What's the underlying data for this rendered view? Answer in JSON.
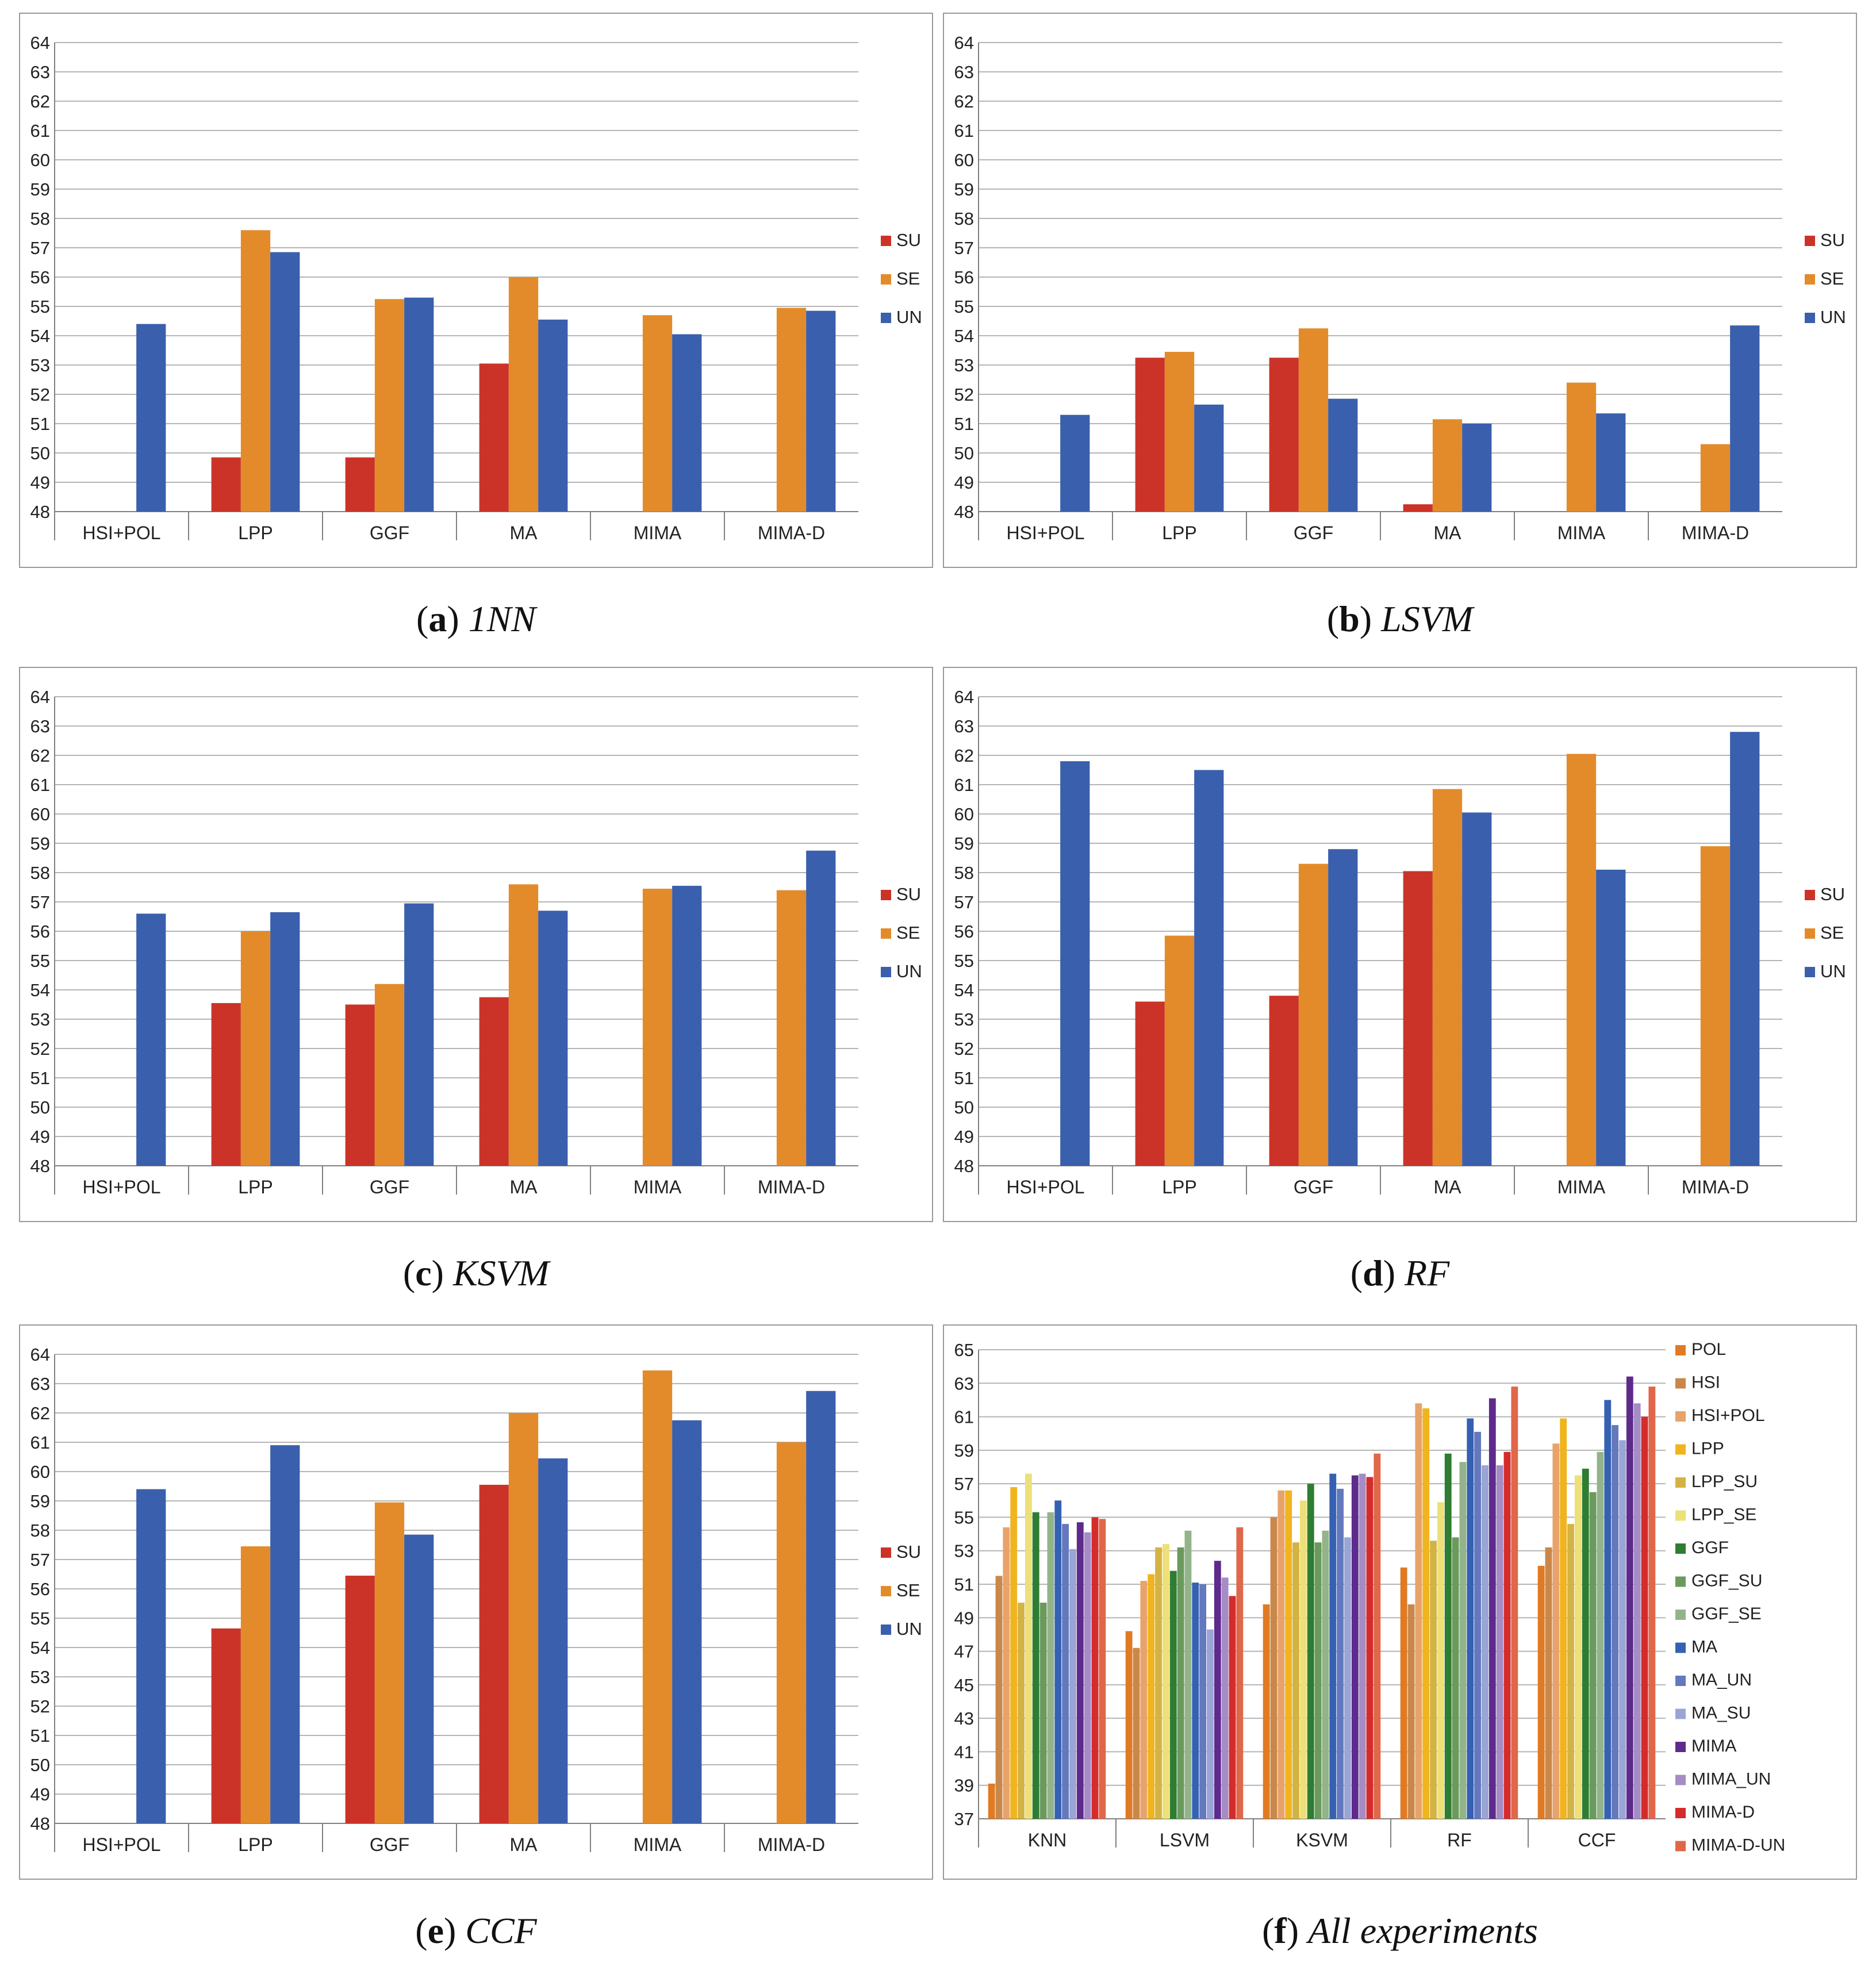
{
  "colors": {
    "SU": "#cc3328",
    "SE": "#e38b2a",
    "UN": "#3a5fad",
    "grid": "#b5b5b5",
    "axis": "#808080"
  },
  "chart_data": [
    {
      "type": "bar",
      "panel_label": "a",
      "caption": "1NN",
      "categories": [
        "HSI+POL",
        "LPP",
        "GGF",
        "MA",
        "MIMA",
        "MIMA-D"
      ],
      "ylim": [
        48,
        64
      ],
      "yticks": [
        48,
        49,
        50,
        51,
        52,
        53,
        54,
        55,
        56,
        57,
        58,
        59,
        60,
        61,
        62,
        63,
        64
      ],
      "series": [
        {
          "name": "SU",
          "values": [
            null,
            49.85,
            49.85,
            53.05,
            null,
            null
          ]
        },
        {
          "name": "SE",
          "values": [
            null,
            57.6,
            55.25,
            56.0,
            54.7,
            54.95
          ]
        },
        {
          "name": "UN",
          "values": [
            54.4,
            56.85,
            55.3,
            54.55,
            54.05,
            54.85
          ]
        }
      ]
    },
    {
      "type": "bar",
      "panel_label": "b",
      "caption": "LSVM",
      "categories": [
        "HSI+POL",
        "LPP",
        "GGF",
        "MA",
        "MIMA",
        "MIMA-D"
      ],
      "ylim": [
        48,
        64
      ],
      "yticks": [
        48,
        49,
        50,
        51,
        52,
        53,
        54,
        55,
        56,
        57,
        58,
        59,
        60,
        61,
        62,
        63,
        64
      ],
      "series": [
        {
          "name": "SU",
          "values": [
            null,
            53.25,
            53.25,
            48.25,
            null,
            null
          ]
        },
        {
          "name": "SE",
          "values": [
            null,
            53.45,
            54.25,
            51.15,
            52.4,
            50.3
          ]
        },
        {
          "name": "UN",
          "values": [
            51.3,
            51.65,
            51.85,
            51.0,
            51.35,
            54.35
          ]
        }
      ]
    },
    {
      "type": "bar",
      "panel_label": "c",
      "caption": "KSVM",
      "categories": [
        "HSI+POL",
        "LPP",
        "GGF",
        "MA",
        "MIMA",
        "MIMA-D"
      ],
      "ylim": [
        48,
        64
      ],
      "yticks": [
        48,
        49,
        50,
        51,
        52,
        53,
        54,
        55,
        56,
        57,
        58,
        59,
        60,
        61,
        62,
        63,
        64
      ],
      "series": [
        {
          "name": "SU",
          "values": [
            null,
            53.55,
            53.5,
            53.75,
            null,
            null
          ]
        },
        {
          "name": "SE",
          "values": [
            null,
            56.0,
            54.2,
            57.6,
            57.45,
            57.4
          ]
        },
        {
          "name": "UN",
          "values": [
            56.6,
            56.65,
            56.95,
            56.7,
            57.55,
            58.75
          ]
        }
      ]
    },
    {
      "type": "bar",
      "panel_label": "d",
      "caption": "RF",
      "categories": [
        "HSI+POL",
        "LPP",
        "GGF",
        "MA",
        "MIMA",
        "MIMA-D"
      ],
      "ylim": [
        48,
        64
      ],
      "yticks": [
        48,
        49,
        50,
        51,
        52,
        53,
        54,
        55,
        56,
        57,
        58,
        59,
        60,
        61,
        62,
        63,
        64
      ],
      "series": [
        {
          "name": "SU",
          "values": [
            null,
            53.6,
            53.8,
            58.05,
            null,
            null
          ]
        },
        {
          "name": "SE",
          "values": [
            null,
            55.85,
            58.3,
            60.85,
            62.05,
            58.9
          ]
        },
        {
          "name": "UN",
          "values": [
            61.8,
            61.5,
            58.8,
            60.05,
            58.1,
            62.8
          ]
        }
      ]
    },
    {
      "type": "bar",
      "panel_label": "e",
      "caption": "CCF",
      "categories": [
        "HSI+POL",
        "LPP",
        "GGF",
        "MA",
        "MIMA",
        "MIMA-D"
      ],
      "ylim": [
        48,
        64
      ],
      "yticks": [
        48,
        49,
        50,
        51,
        52,
        53,
        54,
        55,
        56,
        57,
        58,
        59,
        60,
        61,
        62,
        63,
        64
      ],
      "series": [
        {
          "name": "SU",
          "values": [
            null,
            54.65,
            56.45,
            59.55,
            null,
            null
          ]
        },
        {
          "name": "SE",
          "values": [
            null,
            57.45,
            58.95,
            62.0,
            63.45,
            61.0
          ]
        },
        {
          "name": "UN",
          "values": [
            59.4,
            60.9,
            57.85,
            60.45,
            61.75,
            62.75
          ]
        }
      ]
    },
    {
      "type": "bar",
      "panel_label": "f",
      "caption": "All experiments",
      "categories": [
        "KNN",
        "LSVM",
        "KSVM",
        "RF",
        "CCF"
      ],
      "ylim": [
        37,
        65
      ],
      "yticks": [
        37,
        39,
        41,
        43,
        45,
        47,
        49,
        51,
        53,
        55,
        57,
        59,
        61,
        63,
        65
      ],
      "series": [
        {
          "name": "POL",
          "color": "#e07a23",
          "values": [
            39.1,
            48.2,
            49.8,
            52.0,
            52.1
          ]
        },
        {
          "name": "HSI",
          "color": "#c9884a",
          "values": [
            51.5,
            47.2,
            55.0,
            49.8,
            53.2
          ]
        },
        {
          "name": "HSI+POL",
          "color": "#e8a36a",
          "values": [
            54.4,
            51.2,
            56.6,
            61.8,
            59.4
          ]
        },
        {
          "name": "LPP",
          "color": "#f0b41e",
          "values": [
            56.8,
            51.6,
            56.6,
            61.5,
            60.9
          ]
        },
        {
          "name": "LPP_SU",
          "color": "#d4b345",
          "values": [
            49.9,
            53.2,
            53.5,
            53.6,
            54.6
          ]
        },
        {
          "name": "LPP_SE",
          "color": "#ede079",
          "values": [
            57.6,
            53.4,
            56.0,
            55.9,
            57.5
          ]
        },
        {
          "name": "GGF",
          "color": "#2e7d32",
          "values": [
            55.3,
            51.8,
            57.0,
            58.8,
            57.9
          ]
        },
        {
          "name": "GGF_SU",
          "color": "#6a9a5c",
          "values": [
            49.9,
            53.2,
            53.5,
            53.8,
            56.5
          ]
        },
        {
          "name": "GGF_SE",
          "color": "#93b48a",
          "values": [
            55.3,
            54.2,
            54.2,
            58.3,
            58.9
          ]
        },
        {
          "name": "MA",
          "color": "#3561b3",
          "values": [
            56.0,
            51.1,
            57.6,
            60.9,
            62.0
          ]
        },
        {
          "name": "MA_UN",
          "color": "#6378bd",
          "values": [
            54.6,
            51.0,
            56.7,
            60.1,
            60.5
          ]
        },
        {
          "name": "MA_SU",
          "color": "#9aa5d6",
          "values": [
            53.1,
            48.3,
            53.8,
            58.1,
            59.6
          ]
        },
        {
          "name": "MIMA",
          "color": "#5e2a8c",
          "values": [
            54.7,
            52.4,
            57.5,
            62.1,
            63.4
          ]
        },
        {
          "name": "MIMA_UN",
          "color": "#a58cc4",
          "values": [
            54.1,
            51.4,
            57.6,
            58.1,
            61.8
          ]
        },
        {
          "name": "MIMA-D",
          "color": "#d42b2b",
          "values": [
            55.0,
            50.3,
            57.4,
            58.9,
            61.0
          ]
        },
        {
          "name": "MIMA-D-UN",
          "color": "#e0674a",
          "values": [
            54.9,
            54.4,
            58.8,
            62.8,
            62.8
          ]
        }
      ]
    }
  ]
}
